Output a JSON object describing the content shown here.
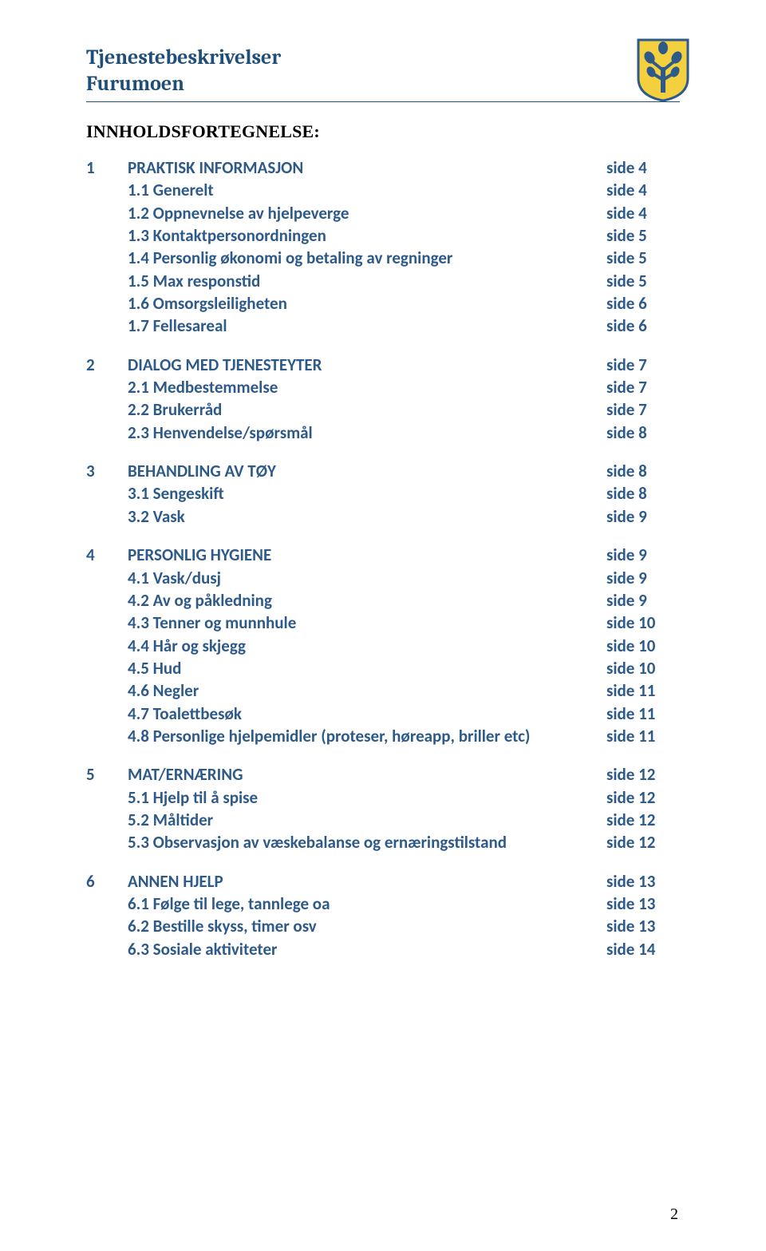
{
  "header": {
    "line1": "Tjenestebeskrivelser",
    "line2": "Furumoen"
  },
  "crest": {
    "shield_fill": "#f4d03f",
    "shield_stroke": "#2e5a8a",
    "leaf_fill": "#2e5a8a"
  },
  "toc_heading": "INNHOLDSFORTEGNELSE:",
  "sections": [
    {
      "num": "1",
      "items": [
        {
          "label": "PRAKTISK INFORMASJON",
          "page": "side 4"
        },
        {
          "label": "1.1 Generelt",
          "page": "side 4"
        },
        {
          "label": "1.2 Oppnevnelse av hjelpeverge",
          "page": "side 4"
        },
        {
          "label": "1.3 Kontaktpersonordningen",
          "page": "side 5"
        },
        {
          "label": "1.4 Personlig økonomi og betaling av regninger",
          "page": "side 5"
        },
        {
          "label": "1.5 Max responstid",
          "page": "side 5"
        },
        {
          "label": "1.6 Omsorgsleiligheten",
          "page": "side 6"
        },
        {
          "label": "1.7 Fellesareal",
          "page": "side 6"
        }
      ]
    },
    {
      "num": "2",
      "items": [
        {
          "label": "DIALOG MED TJENESTEYTER",
          "page": "side 7"
        },
        {
          "label": "2.1 Medbestemmelse",
          "page": "side 7"
        },
        {
          "label": "2.2 Brukerråd",
          "page": "side 7"
        },
        {
          "label": "2.3 Henvendelse/spørsmål",
          "page": "side 8"
        }
      ]
    },
    {
      "num": "3",
      "items": [
        {
          "label": "BEHANDLING AV TØY",
          "page": "side 8"
        },
        {
          "label": "3.1 Sengeskift",
          "page": "side 8"
        },
        {
          "label": "3.2 Vask",
          "page": "side 9"
        }
      ]
    },
    {
      "num": "4",
      "items": [
        {
          "label": "PERSONLIG HYGIENE",
          "page": "side 9"
        },
        {
          "label": "4.1 Vask/dusj",
          "page": "side 9"
        },
        {
          "label": "4.2 Av og påkledning",
          "page": "side 9"
        },
        {
          "label": "4.3 Tenner og munnhule",
          "page": "side 10"
        },
        {
          "label": "4.4 Hår og skjegg",
          "page": "side 10"
        },
        {
          "label": "4.5 Hud",
          "page": "side 10"
        },
        {
          "label": "4.6 Negler",
          "page": "side 11"
        },
        {
          "label": "4.7 Toalettbesøk",
          "page": "side 11"
        },
        {
          "label": "4.8 Personlige hjelpemidler (proteser, høreapp, briller etc)",
          "page": "side 11"
        }
      ]
    },
    {
      "num": "5",
      "items": [
        {
          "label": "MAT/ERNÆRING",
          "page": "side 12"
        },
        {
          "label": "5.1 Hjelp til å spise",
          "page": "side 12"
        },
        {
          "label": "5.2 Måltider",
          "page": "side 12"
        },
        {
          "label": "5.3 Observasjon av væskebalanse og ernæringstilstand",
          "page": "side 12"
        }
      ]
    },
    {
      "num": "6",
      "items": [
        {
          "label": "ANNEN HJELP",
          "page": "side 13"
        },
        {
          "label": "6.1 Følge til lege, tannlege oa",
          "page": "side 13"
        },
        {
          "label": "6.2 Bestille skyss, timer osv",
          "page": "side 13"
        },
        {
          "label": "6.3 Sosiale aktiviteter",
          "page": "side 14"
        }
      ]
    }
  ],
  "page_number": "2",
  "colors": {
    "header_color": "#1f4e78",
    "toc_color": "#2e5a8a",
    "heading_color": "#000000",
    "background": "#ffffff"
  },
  "typography": {
    "header_font": "Cambria, Georgia, serif",
    "header_size_pt": 20,
    "toc_heading_font": "Times New Roman",
    "toc_heading_size_pt": 17,
    "toc_font": "Calibri",
    "toc_size_pt": 15
  }
}
